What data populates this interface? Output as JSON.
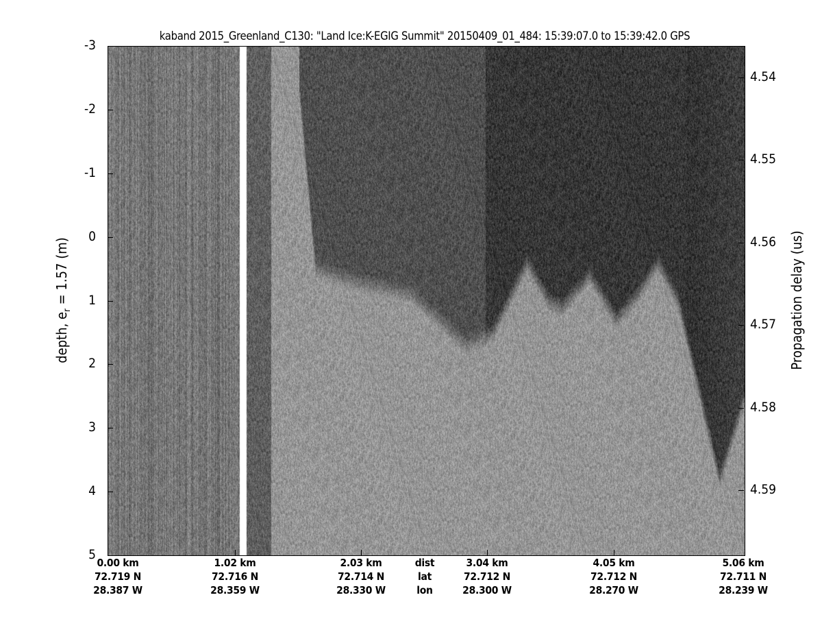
{
  "chart_data": {
    "type": "heatmap",
    "title": "kaband 2015_Greenland_C130: \"Land Ice:K-EGIG Summit\"  20150409_01_484: 15:39:07.0 to 15:39:42.0 GPS",
    "ylabel": "depth, e",
    "ylabel_sub": "r",
    "ylabel_rest": " = 1.57 (m)",
    "y2label": "Propagation delay (us)",
    "ylim": [
      -3,
      5
    ],
    "y_ticks": [
      "-3",
      "-2",
      "-1",
      "0",
      "1",
      "2",
      "3",
      "4",
      "5"
    ],
    "y2_ticks": [
      "4.54",
      "4.55",
      "4.56",
      "4.57",
      "4.58",
      "4.59"
    ],
    "xlim_km": [
      0,
      5.06
    ],
    "x_rows": [
      {
        "label": "dist",
        "values": [
          "0.00 km",
          "1.02 km",
          "2.03 km",
          "3.04 km",
          "4.05 km",
          "5.06 km"
        ]
      },
      {
        "label": "lat",
        "values": [
          "72.719 N",
          "72.716 N",
          "72.714 N",
          "72.712 N",
          "72.712 N",
          "72.711 N"
        ]
      },
      {
        "label": "lon",
        "values": [
          "28.387 W",
          "28.359 W",
          "28.330 W",
          "28.300 W",
          "28.270 W",
          "28.239 W"
        ]
      }
    ],
    "colormap": "gray",
    "dark_layer_bottom_depth_m": {
      "dist_km": [
        1.49,
        1.65,
        1.98,
        2.41,
        2.85,
        3.06,
        3.33,
        3.5,
        3.61,
        3.83,
        4.04,
        4.21,
        4.37,
        4.53,
        4.86,
        5.06
      ],
      "depth_m": [
        -3,
        0.5,
        0.7,
        0.9,
        1.7,
        1.5,
        0.4,
        1.0,
        1.1,
        0.6,
        1.3,
        0.9,
        0.4,
        1.0,
        3.8,
        2.5
      ]
    },
    "gap_km": [
      1.05,
      1.1
    ]
  }
}
